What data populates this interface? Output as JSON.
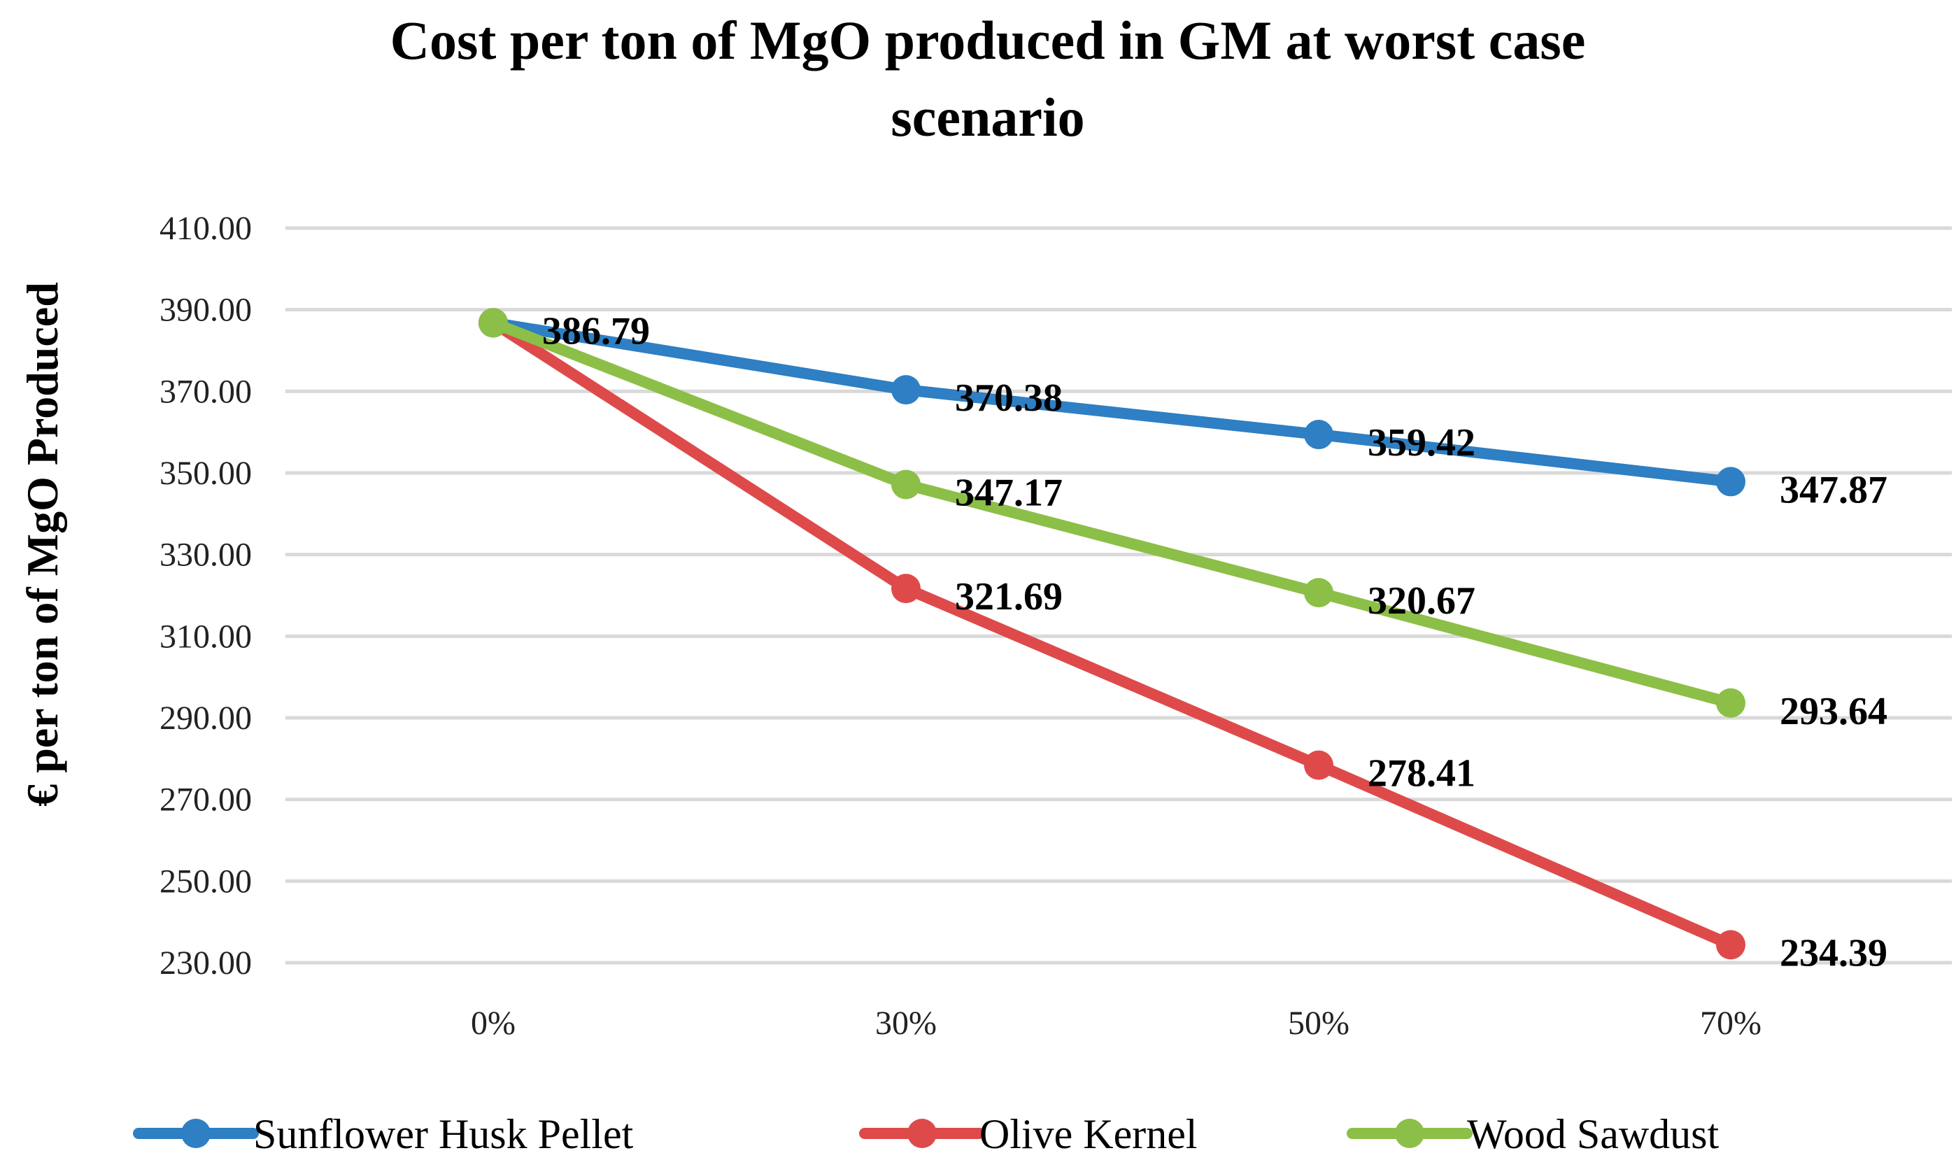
{
  "chart_data": {
    "type": "line",
    "title_lines": [
      "Cost per ton of MgO produced in GM at worst case",
      "scenario"
    ],
    "xlabel": "",
    "ylabel": "€ per ton of MgO Produced",
    "categories": [
      "0%",
      "30%",
      "50%",
      "70%"
    ],
    "y_ticks": [
      "230.00",
      "250.00",
      "270.00",
      "290.00",
      "310.00",
      "330.00",
      "350.00",
      "370.00",
      "390.00",
      "410.00"
    ],
    "ylim": [
      230,
      410
    ],
    "grid": true,
    "legend_position": "bottom",
    "series": [
      {
        "name": "Sunflower Husk Pellet",
        "color": "#2e7fc3",
        "values": [
          386.79,
          370.38,
          359.42,
          347.87
        ],
        "labels": [
          "386.79",
          "370.38",
          "359.42",
          "347.87"
        ]
      },
      {
        "name": "Olive Kernel",
        "color": "#de4a4a",
        "values": [
          386.79,
          321.69,
          278.41,
          234.39
        ],
        "labels": [
          "",
          "321.69",
          "278.41",
          "234.39"
        ]
      },
      {
        "name": "Wood Sawdust",
        "color": "#8cbf47",
        "values": [
          386.79,
          347.17,
          320.67,
          293.64
        ],
        "labels": [
          "",
          "347.17",
          "320.67",
          "293.64"
        ]
      }
    ]
  }
}
